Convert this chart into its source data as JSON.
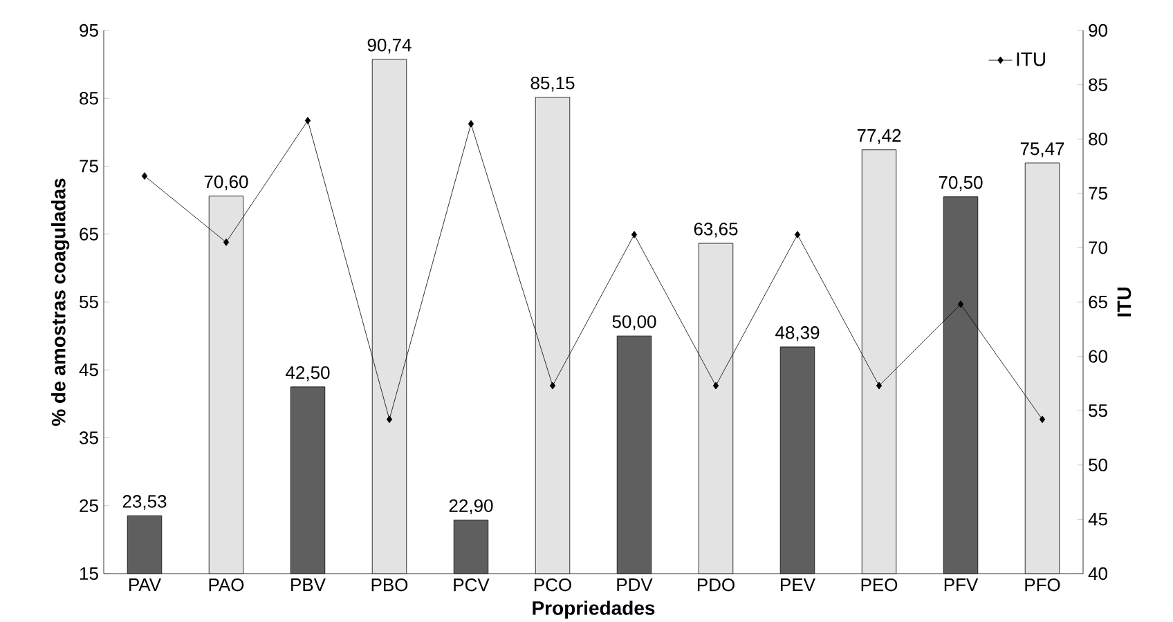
{
  "chart_data": {
    "type": "bar",
    "xlabel": "Propriedades",
    "ylabel": "% de amostras coaguladas",
    "y2label": "ITU",
    "categories": [
      "PAV",
      "PAO",
      "PBV",
      "PBO",
      "PCV",
      "PCO",
      "PDV",
      "PDO",
      "PEV",
      "PEO",
      "PFV",
      "PFO"
    ],
    "series": [
      {
        "colors": [
          "#5f5f5f",
          "#e3e3e3",
          "#5f5f5f",
          "#e3e3e3",
          "#5f5f5f",
          "#e3e3e3",
          "#5f5f5f",
          "#e3e3e3",
          "#5f5f5f",
          "#e3e3e3",
          "#5f5f5f",
          "#e3e3e3"
        ],
        "values": [
          23.53,
          70.6,
          42.5,
          90.74,
          22.9,
          85.15,
          50.0,
          63.65,
          48.39,
          77.42,
          70.5,
          75.47
        ],
        "value_labels": [
          "23,53",
          "70,60",
          "42,50",
          "90,74",
          "22,90",
          "85,15",
          "50,00",
          "63,65",
          "48,39",
          "77,42",
          "70,50",
          "75,47"
        ]
      },
      {
        "type": "line",
        "name": "ITU",
        "axis": "y2",
        "color": "#000000",
        "marker": "diamond",
        "line_style": "solid",
        "values": [
          76.6,
          70.5,
          81.7,
          54.2,
          81.4,
          57.3,
          71.2,
          57.3,
          71.2,
          57.3,
          64.8,
          54.2
        ]
      }
    ],
    "ylim": [
      15,
      95
    ],
    "yticks": [
      15,
      25,
      35,
      45,
      55,
      65,
      75,
      85,
      95
    ],
    "y2lim": [
      40,
      90
    ],
    "y2ticks": [
      40,
      45,
      50,
      55,
      60,
      65,
      70,
      75,
      80,
      85,
      90
    ],
    "legend": "top right",
    "grid": false
  }
}
